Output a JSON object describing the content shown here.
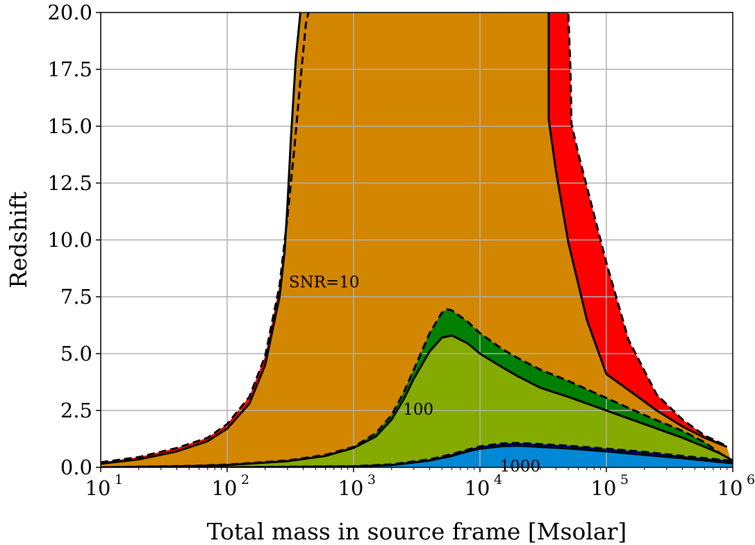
{
  "chart_data": {
    "type": "area",
    "title": "",
    "xlabel": "Total mass in source frame [Msolar]",
    "ylabel": "Redshift",
    "xscale": "log",
    "xlim": [
      10,
      1000000
    ],
    "ylim": [
      0,
      20
    ],
    "grid": true,
    "x_tick_labels": [
      {
        "base": "10",
        "exp": "1"
      },
      {
        "base": "10",
        "exp": "2"
      },
      {
        "base": "10",
        "exp": "3"
      },
      {
        "base": "10",
        "exp": "4"
      },
      {
        "base": "10",
        "exp": "5"
      },
      {
        "base": "10",
        "exp": "6"
      }
    ],
    "y_tick_labels": [
      "0.0",
      "2.5",
      "5.0",
      "7.5",
      "10.0",
      "12.5",
      "15.0",
      "17.5",
      "20.0"
    ],
    "colors": {
      "snr10_outer": "#ff0000",
      "snr10_inner": "#d38600",
      "snr100_outer": "#007f00",
      "snr100_inner": "#85aa00",
      "snr1000_outer": "#000099",
      "snr1000_inner": "#0088d6"
    },
    "contour_labels": [
      {
        "text": "SNR=10",
        "x": 300,
        "y": 8.1
      },
      {
        "text": "100",
        "x": 2400,
        "y": 2.5
      },
      {
        "text": "1000",
        "x": 14000,
        "y": 0.0
      }
    ],
    "series": [
      {
        "x": [
          10,
          20,
          40,
          70,
          100,
          150,
          200,
          260,
          300,
          340,
          380,
          420,
          440
        ],
        "y": [
          0.22,
          0.45,
          0.85,
          1.3,
          1.9,
          3.1,
          4.9,
          8.0,
          11.0,
          14.0,
          17.0,
          19.5,
          20.0
        ],
        "upper_x": [
          850000,
          600000,
          400000,
          250000,
          150000,
          100000,
          75000,
          60000,
          53000,
          52000,
          50000
        ],
        "upper_y": [
          1.0,
          1.4,
          2.1,
          3.2,
          5.6,
          9.0,
          11.7,
          13.8,
          15.1,
          17.5,
          20.0
        ]
      },
      {
        "x": [
          10,
          20,
          40,
          70,
          100,
          150,
          200,
          260,
          285,
          300,
          320,
          350,
          380
        ],
        "y": [
          0.16,
          0.35,
          0.7,
          1.15,
          1.7,
          2.8,
          4.5,
          7.5,
          9.5,
          11.5,
          14.5,
          18.0,
          20.0
        ],
        "upper_x": [
          900000,
          600000,
          400000,
          250000,
          150000,
          100000,
          70000,
          50000,
          40000,
          35000,
          35000
        ],
        "upper_y": [
          0.9,
          1.3,
          1.8,
          2.5,
          3.4,
          4.1,
          6.5,
          9.9,
          13.0,
          15.3,
          20.0
        ]
      },
      {
        "x": [
          10,
          50,
          100,
          300,
          600,
          1000,
          1500,
          2000,
          2500,
          3000,
          4000,
          5000,
          5500,
          6000,
          8000,
          10000,
          15000,
          20000,
          30000,
          50000,
          100000,
          200000,
          400000,
          600000,
          800000,
          1000000
        ],
        "y": [
          0.0,
          0.06,
          0.12,
          0.3,
          0.55,
          0.9,
          1.5,
          2.3,
          3.3,
          4.3,
          5.9,
          6.8,
          6.95,
          6.9,
          6.4,
          5.9,
          5.2,
          4.8,
          4.3,
          3.8,
          3.05,
          2.3,
          1.6,
          1.1,
          0.6,
          0.3
        ]
      },
      {
        "x": [
          10,
          50,
          100,
          300,
          600,
          1000,
          1500,
          2000,
          2500,
          3000,
          4000,
          5000,
          6000,
          8000,
          10000,
          15000,
          20000,
          30000,
          50000,
          100000,
          200000,
          400000,
          600000,
          800000,
          1000000
        ],
        "y": [
          0.0,
          0.05,
          0.1,
          0.27,
          0.5,
          0.85,
          1.35,
          2.1,
          3.0,
          3.9,
          5.1,
          5.7,
          5.8,
          5.45,
          5.0,
          4.4,
          4.0,
          3.5,
          3.1,
          2.5,
          1.9,
          1.3,
          0.9,
          0.6,
          0.3
        ]
      },
      {
        "x": [
          10,
          100,
          1000,
          2000,
          4000,
          6000,
          8000,
          10000,
          15000,
          20000,
          30000,
          50000,
          100000,
          200000,
          400000,
          1000000
        ],
        "y": [
          0.0,
          0.0,
          0.05,
          0.13,
          0.35,
          0.58,
          0.78,
          0.92,
          1.05,
          1.07,
          1.02,
          0.95,
          0.82,
          0.68,
          0.5,
          0.28
        ]
      },
      {
        "x": [
          10,
          100,
          1000,
          2000,
          4000,
          6000,
          8000,
          10000,
          15000,
          20000,
          30000,
          50000,
          100000,
          200000,
          400000,
          1000000
        ],
        "y": [
          0.0,
          0.0,
          0.04,
          0.1,
          0.3,
          0.5,
          0.7,
          0.82,
          0.93,
          0.95,
          0.9,
          0.83,
          0.7,
          0.55,
          0.4,
          0.18
        ]
      }
    ]
  }
}
